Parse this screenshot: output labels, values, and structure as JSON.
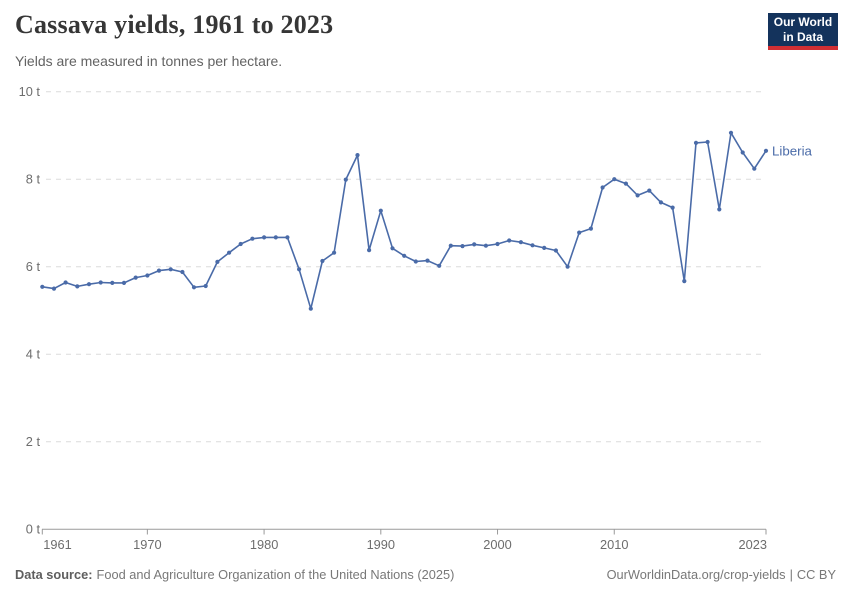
{
  "header": {
    "title": "Cassava yields, 1961 to 2023",
    "subtitle": "Yields are measured in tonnes per hectare.",
    "logo": {
      "line1": "Our World",
      "line2": "in Data"
    }
  },
  "chart_data": {
    "type": "line",
    "title": "Cassava yields, 1961 to 2023",
    "ylabel": "tonnes per hectare",
    "xlabel": "",
    "xlim": [
      1961,
      2023
    ],
    "ylim": [
      0,
      10
    ],
    "grid": "horizontal-dashed",
    "legend": "line-end-label",
    "x_ticks": [
      1961,
      1970,
      1980,
      1990,
      2000,
      2010,
      2023
    ],
    "x_tick_labels": [
      "1961",
      "1970",
      "1980",
      "1990",
      "2000",
      "2010",
      "2023"
    ],
    "y_ticks": [
      0,
      2,
      4,
      6,
      8,
      10
    ],
    "y_tick_labels": [
      "0 t",
      "2 t",
      "4 t",
      "6 t",
      "8 t",
      "10 t"
    ],
    "x": [
      1961,
      1962,
      1963,
      1964,
      1965,
      1966,
      1967,
      1968,
      1969,
      1970,
      1971,
      1972,
      1973,
      1974,
      1975,
      1976,
      1977,
      1978,
      1979,
      1980,
      1981,
      1982,
      1983,
      1984,
      1985,
      1986,
      1987,
      1988,
      1989,
      1990,
      1991,
      1992,
      1993,
      1994,
      1995,
      1996,
      1997,
      1998,
      1999,
      2000,
      2001,
      2002,
      2003,
      2004,
      2005,
      2006,
      2007,
      2008,
      2009,
      2010,
      2011,
      2012,
      2013,
      2014,
      2015,
      2016,
      2017,
      2018,
      2019,
      2020,
      2021,
      2022,
      2023
    ],
    "series": [
      {
        "name": "Liberia",
        "color": "#4a6ba8",
        "values": [
          5.54,
          5.5,
          5.64,
          5.55,
          5.6,
          5.64,
          5.63,
          5.63,
          5.75,
          5.8,
          5.91,
          5.94,
          5.88,
          5.53,
          5.56,
          6.11,
          6.32,
          6.52,
          6.64,
          6.67,
          6.67,
          6.67,
          5.94,
          5.04,
          6.13,
          6.32,
          7.99,
          8.55,
          6.38,
          7.28,
          6.42,
          6.25,
          6.12,
          6.14,
          6.02,
          6.48,
          6.47,
          6.51,
          6.48,
          6.52,
          6.6,
          6.56,
          6.49,
          6.43,
          6.37,
          6.0,
          6.78,
          6.87,
          7.81,
          8.0,
          7.9,
          7.63,
          7.74,
          7.47,
          7.35,
          5.67,
          8.83,
          8.85,
          7.31,
          9.06,
          8.61,
          8.24,
          8.65
        ]
      }
    ],
    "style": {
      "grid_color": "#dcdcdc",
      "axis_color": "#9a9a9a",
      "tick_label_color": "#6d6d6d"
    }
  },
  "footer": {
    "datasource_label": "Data source:",
    "datasource_text": "Food and Agriculture Organization of the United Nations (2025)",
    "link": "OurWorldinData.org/crop-yields",
    "separator": "|",
    "license": "CC BY"
  }
}
